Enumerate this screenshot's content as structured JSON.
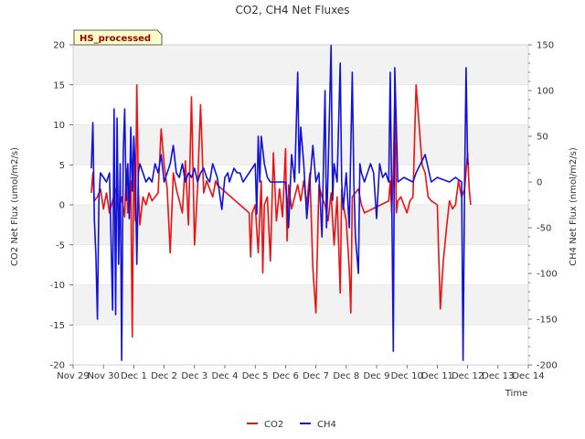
{
  "chart_data": {
    "type": "line",
    "title": "CO2, CH4 Net Fluxes",
    "xlabel": "Time",
    "ylabel": "CO2 Net Flux (umol/m2/s)",
    "y2label": "CH4 Net Flux (nmol/m2/s)",
    "annotation": "HS_processed",
    "x_ticks": [
      "Nov 29",
      "Nov 30",
      "Dec 1",
      "Dec 2",
      "Dec 3",
      "Dec 4",
      "Dec 5",
      "Dec 6",
      "Dec 7",
      "Dec 8",
      "Dec 9",
      "Dec 10",
      "Dec 11",
      "Dec 12",
      "Dec 13",
      "Dec 14"
    ],
    "xlim": [
      0,
      15
    ],
    "ylim": [
      -20,
      20
    ],
    "y2lim": [
      -200,
      150
    ],
    "y_ticks": [
      -20,
      -15,
      -10,
      -5,
      0,
      5,
      10,
      15,
      20
    ],
    "y2_ticks": [
      -200,
      -150,
      -100,
      -50,
      0,
      50,
      100,
      150
    ],
    "legend_position": "bottom",
    "series": [
      {
        "name": "CO2",
        "axis": "left",
        "color": "#ee1111",
        "points": [
          [
            0.6,
            1.5
          ],
          [
            0.65,
            4.0
          ],
          [
            0.7,
            0.5
          ],
          [
            0.8,
            1.0
          ],
          [
            0.9,
            2.0
          ],
          [
            1.0,
            -0.5
          ],
          [
            1.1,
            1.5
          ],
          [
            1.2,
            -1.0
          ],
          [
            1.3,
            0.5
          ],
          [
            1.4,
            2.0
          ],
          [
            1.5,
            -1.0
          ],
          [
            1.6,
            1.0
          ],
          [
            1.7,
            -1.5
          ],
          [
            1.75,
            4.5
          ],
          [
            1.8,
            -1.0
          ],
          [
            1.9,
            3.0
          ],
          [
            1.95,
            -16.5
          ],
          [
            2.0,
            6.0
          ],
          [
            2.05,
            -2.0
          ],
          [
            2.1,
            15.0
          ],
          [
            2.15,
            2.0
          ],
          [
            2.2,
            -2.5
          ],
          [
            2.3,
            1.0
          ],
          [
            2.4,
            0.0
          ],
          [
            2.5,
            1.5
          ],
          [
            2.6,
            0.5
          ],
          [
            2.7,
            1.0
          ],
          [
            2.8,
            1.5
          ],
          [
            2.9,
            9.5
          ],
          [
            3.0,
            5.0
          ],
          [
            3.1,
            2.0
          ],
          [
            3.2,
            -6.0
          ],
          [
            3.3,
            4.0
          ],
          [
            3.4,
            2.0
          ],
          [
            3.5,
            0.5
          ],
          [
            3.6,
            -1.0
          ],
          [
            3.7,
            5.5
          ],
          [
            3.8,
            -2.5
          ],
          [
            3.9,
            13.5
          ],
          [
            4.0,
            -5.0
          ],
          [
            4.1,
            2.0
          ],
          [
            4.2,
            12.5
          ],
          [
            4.3,
            1.5
          ],
          [
            4.4,
            3.0
          ],
          [
            4.5,
            2.0
          ],
          [
            4.6,
            1.0
          ],
          [
            4.7,
            3.0
          ],
          [
            4.75,
            2.5
          ],
          [
            5.8,
            -1.0
          ],
          [
            5.85,
            -6.5
          ],
          [
            5.9,
            -1.0
          ],
          [
            6.0,
            0.0
          ],
          [
            6.1,
            -6.0
          ],
          [
            6.2,
            3.0
          ],
          [
            6.25,
            -8.5
          ],
          [
            6.3,
            0.0
          ],
          [
            6.4,
            1.0
          ],
          [
            6.5,
            -7.0
          ],
          [
            6.6,
            6.5
          ],
          [
            6.7,
            -2.0
          ],
          [
            6.8,
            2.0
          ],
          [
            6.9,
            -1.5
          ],
          [
            7.0,
            7.0
          ],
          [
            7.05,
            -4.5
          ],
          [
            7.1,
            2.5
          ],
          [
            7.2,
            -0.5
          ],
          [
            7.3,
            1.0
          ],
          [
            7.4,
            2.5
          ],
          [
            7.5,
            0.5
          ],
          [
            7.6,
            3.0
          ],
          [
            7.7,
            0.0
          ],
          [
            7.8,
            4.0
          ],
          [
            7.9,
            -8.0
          ],
          [
            8.0,
            -13.5
          ],
          [
            8.1,
            2.5
          ],
          [
            8.2,
            1.0
          ],
          [
            8.3,
            0.0
          ],
          [
            8.4,
            -2.0
          ],
          [
            8.5,
            1.5
          ],
          [
            8.6,
            -5.0
          ],
          [
            8.7,
            1.0
          ],
          [
            8.8,
            -11.0
          ],
          [
            8.85,
            2.0
          ],
          [
            8.9,
            0.0
          ],
          [
            9.0,
            -2.0
          ],
          [
            9.1,
            -8.0
          ],
          [
            9.15,
            -13.5
          ],
          [
            9.2,
            1.0
          ],
          [
            9.3,
            1.5
          ],
          [
            9.4,
            2.0
          ],
          [
            9.5,
            0.0
          ],
          [
            9.6,
            -1.0
          ],
          [
            10.4,
            0.5
          ],
          [
            10.45,
            3.0
          ],
          [
            10.5,
            -1.0
          ],
          [
            10.55,
            4.5
          ],
          [
            10.6,
            13.5
          ],
          [
            10.65,
            -1.0
          ],
          [
            10.7,
            0.5
          ],
          [
            10.8,
            1.0
          ],
          [
            10.9,
            0.0
          ],
          [
            11.0,
            -1.0
          ],
          [
            11.1,
            0.5
          ],
          [
            11.2,
            1.0
          ],
          [
            11.3,
            15.0
          ],
          [
            11.5,
            5.0
          ],
          [
            11.6,
            4.0
          ],
          [
            11.7,
            1.0
          ],
          [
            11.8,
            0.5
          ],
          [
            12.0,
            0.0
          ],
          [
            12.1,
            -13.0
          ],
          [
            12.2,
            -7.0
          ],
          [
            12.3,
            -3.0
          ],
          [
            12.4,
            0.5
          ],
          [
            12.5,
            -0.5
          ],
          [
            12.6,
            0.0
          ],
          [
            12.7,
            3.0
          ],
          [
            12.8,
            1.0
          ],
          [
            12.9,
            2.0
          ],
          [
            13.0,
            6.5
          ],
          [
            13.05,
            2.0
          ],
          [
            13.1,
            0.0
          ]
        ]
      },
      {
        "name": "CH4",
        "axis": "right",
        "color": "#1111dd",
        "points": [
          [
            0.6,
            15.0
          ],
          [
            0.65,
            65.0
          ],
          [
            0.7,
            -40.0
          ],
          [
            0.75,
            -80.0
          ],
          [
            0.8,
            -150.0
          ],
          [
            0.85,
            -20.0
          ],
          [
            0.9,
            10.0
          ],
          [
            1.0,
            5.0
          ],
          [
            1.1,
            0.0
          ],
          [
            1.2,
            10.0
          ],
          [
            1.3,
            -140.0
          ],
          [
            1.35,
            80.0
          ],
          [
            1.4,
            -145.0
          ],
          [
            1.45,
            70.0
          ],
          [
            1.5,
            -90.0
          ],
          [
            1.55,
            20.0
          ],
          [
            1.6,
            -195.0
          ],
          [
            1.65,
            30.0
          ],
          [
            1.7,
            80.0
          ],
          [
            1.75,
            -20.0
          ],
          [
            1.8,
            20.0
          ],
          [
            1.85,
            -40.0
          ],
          [
            1.9,
            60.0
          ],
          [
            1.95,
            -10.0
          ],
          [
            2.0,
            50.0
          ],
          [
            2.05,
            10.0
          ],
          [
            2.1,
            -90.0
          ],
          [
            2.15,
            10.0
          ],
          [
            2.2,
            20.0
          ],
          [
            2.3,
            10.0
          ],
          [
            2.4,
            0.0
          ],
          [
            2.5,
            5.0
          ],
          [
            2.6,
            0.0
          ],
          [
            2.7,
            20.0
          ],
          [
            2.8,
            10.0
          ],
          [
            2.9,
            30.0
          ],
          [
            3.0,
            0.0
          ],
          [
            3.1,
            10.0
          ],
          [
            3.2,
            20.0
          ],
          [
            3.3,
            40.0
          ],
          [
            3.4,
            10.0
          ],
          [
            3.5,
            5.0
          ],
          [
            3.6,
            20.0
          ],
          [
            3.7,
            0.0
          ],
          [
            3.8,
            10.0
          ],
          [
            3.9,
            5.0
          ],
          [
            4.0,
            15.0
          ],
          [
            4.1,
            0.0
          ],
          [
            4.2,
            10.0
          ],
          [
            4.3,
            15.0
          ],
          [
            4.4,
            5.0
          ],
          [
            4.5,
            0.0
          ],
          [
            4.6,
            20.0
          ],
          [
            4.7,
            10.0
          ],
          [
            4.75,
            5.0
          ],
          [
            4.9,
            -30.0
          ],
          [
            5.0,
            5.0
          ],
          [
            5.1,
            10.0
          ],
          [
            5.15,
            0.0
          ],
          [
            5.2,
            5.0
          ],
          [
            5.3,
            15.0
          ],
          [
            5.4,
            10.0
          ],
          [
            5.5,
            10.0
          ],
          [
            5.6,
            0.0
          ],
          [
            6.0,
            20.0
          ],
          [
            6.05,
            -35.0
          ],
          [
            6.1,
            50.0
          ],
          [
            6.15,
            0.0
          ],
          [
            6.2,
            50.0
          ],
          [
            6.3,
            20.0
          ],
          [
            6.4,
            5.0
          ],
          [
            6.5,
            0.0
          ],
          [
            7.0,
            0.0
          ],
          [
            7.1,
            -50.0
          ],
          [
            7.2,
            30.0
          ],
          [
            7.3,
            0.0
          ],
          [
            7.4,
            120.0
          ],
          [
            7.45,
            10.0
          ],
          [
            7.5,
            60.0
          ],
          [
            7.6,
            20.0
          ],
          [
            7.7,
            -40.0
          ],
          [
            7.8,
            0.0
          ],
          [
            7.9,
            40.0
          ],
          [
            8.0,
            0.0
          ],
          [
            8.1,
            10.0
          ],
          [
            8.2,
            -60.0
          ],
          [
            8.3,
            100.0
          ],
          [
            8.35,
            -50.0
          ],
          [
            8.4,
            10.0
          ],
          [
            8.5,
            150.0
          ],
          [
            8.55,
            -20.0
          ],
          [
            8.6,
            20.0
          ],
          [
            8.7,
            0.0
          ],
          [
            8.8,
            130.0
          ],
          [
            8.85,
            0.0
          ],
          [
            8.9,
            -30.0
          ],
          [
            9.0,
            10.0
          ],
          [
            9.1,
            -50.0
          ],
          [
            9.2,
            120.0
          ],
          [
            9.25,
            0.0
          ],
          [
            9.3,
            -60.0
          ],
          [
            9.4,
            -100.0
          ],
          [
            9.45,
            20.0
          ],
          [
            9.5,
            10.0
          ],
          [
            9.6,
            0.0
          ],
          [
            9.8,
            20.0
          ],
          [
            9.9,
            10.0
          ],
          [
            10.0,
            -40.0
          ],
          [
            10.1,
            20.0
          ],
          [
            10.2,
            5.0
          ],
          [
            10.3,
            10.0
          ],
          [
            10.4,
            0.0
          ],
          [
            10.45,
            120.0
          ],
          [
            10.5,
            -20.0
          ],
          [
            10.55,
            -185.0
          ],
          [
            10.6,
            125.0
          ],
          [
            10.7,
            0.0
          ],
          [
            10.9,
            5.0
          ],
          [
            11.2,
            0.0
          ],
          [
            11.3,
            10.0
          ],
          [
            11.6,
            30.0
          ],
          [
            11.8,
            0.0
          ],
          [
            12.0,
            5.0
          ],
          [
            12.4,
            0.0
          ],
          [
            12.6,
            5.0
          ],
          [
            12.8,
            0.0
          ],
          [
            12.85,
            -195.0
          ],
          [
            12.9,
            0.0
          ],
          [
            12.95,
            125.0
          ],
          [
            13.0,
            20.0
          ],
          [
            13.05,
            20.0
          ]
        ]
      }
    ]
  }
}
